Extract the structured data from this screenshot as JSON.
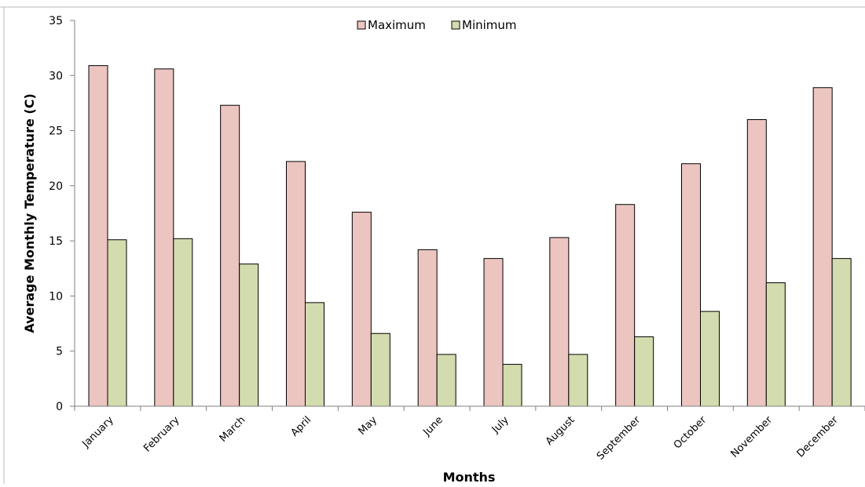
{
  "chart_data": {
    "type": "bar",
    "title": "",
    "xlabel": "Months",
    "ylabel": "Average Monthly Temperature (C)",
    "ylim": [
      0,
      35
    ],
    "yticks": [
      0,
      5,
      10,
      15,
      20,
      25,
      30,
      35
    ],
    "grid": false,
    "legend_position": "top-center",
    "categories": [
      "January",
      "February",
      "March",
      "April",
      "May",
      "June",
      "July",
      "August",
      "September",
      "October",
      "November",
      "December"
    ],
    "series": [
      {
        "name": "Maximum",
        "color": "#ecc5c0",
        "values": [
          30.9,
          30.6,
          27.3,
          22.2,
          17.6,
          14.2,
          13.4,
          15.3,
          18.3,
          22.0,
          26.0,
          28.9
        ]
      },
      {
        "name": "Minimum",
        "color": "#d2dcae",
        "values": [
          15.1,
          15.2,
          12.9,
          9.4,
          6.6,
          4.7,
          3.8,
          4.7,
          6.3,
          8.6,
          11.2,
          13.4
        ]
      }
    ]
  }
}
